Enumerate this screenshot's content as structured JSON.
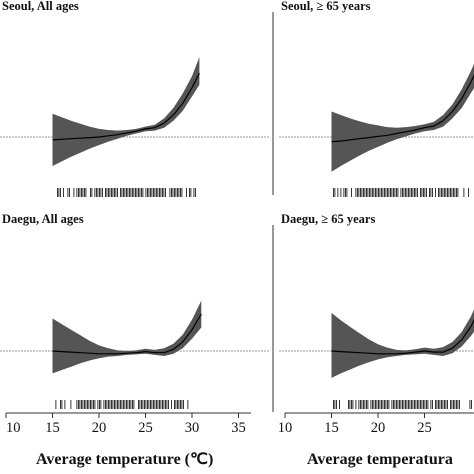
{
  "chart_data": [
    {
      "type": "line",
      "title": "Seoul, All ages",
      "xlim": [
        10,
        35
      ],
      "x": [
        15,
        16,
        17,
        18,
        19,
        20,
        21,
        22,
        23,
        24,
        25,
        26,
        27,
        28,
        29,
        30,
        30.8
      ],
      "series": [
        {
          "values": [
            0.95,
            0.96,
            0.97,
            0.98,
            0.99,
            1.0,
            1.02,
            1.04,
            1.07,
            1.1,
            1.14,
            1.16,
            1.24,
            1.38,
            1.58,
            1.85,
            2.1
          ]
        }
      ],
      "band": {
        "lower": [
          0.5,
          0.58,
          0.66,
          0.73,
          0.8,
          0.86,
          0.92,
          0.97,
          1.02,
          1.06,
          1.1,
          1.11,
          1.16,
          1.28,
          1.45,
          1.7,
          1.9
        ],
        "upper": [
          1.4,
          1.34,
          1.28,
          1.23,
          1.18,
          1.14,
          1.12,
          1.11,
          1.12,
          1.14,
          1.18,
          1.21,
          1.32,
          1.5,
          1.75,
          2.05,
          2.38
        ]
      },
      "reference": 1.0,
      "rug": "observed temperature distribution"
    },
    {
      "type": "line",
      "title": "Seoul, ≥ 65 years",
      "xlim": [
        10,
        35
      ],
      "x": [
        15,
        16,
        17,
        18,
        19,
        20,
        21,
        22,
        23,
        24,
        25,
        26,
        27,
        28,
        29,
        30,
        30.8
      ],
      "series": [
        {
          "values": [
            0.92,
            0.93,
            0.95,
            0.97,
            0.99,
            1.01,
            1.03,
            1.06,
            1.09,
            1.12,
            1.16,
            1.19,
            1.28,
            1.44,
            1.66,
            1.95,
            2.2
          ]
        }
      ],
      "band": {
        "lower": [
          0.4,
          0.5,
          0.59,
          0.68,
          0.76,
          0.83,
          0.9,
          0.96,
          1.01,
          1.06,
          1.1,
          1.12,
          1.18,
          1.32,
          1.5,
          1.76,
          1.96
        ],
        "upper": [
          1.44,
          1.38,
          1.32,
          1.27,
          1.23,
          1.2,
          1.17,
          1.16,
          1.17,
          1.19,
          1.22,
          1.26,
          1.38,
          1.56,
          1.82,
          2.14,
          2.44
        ]
      },
      "reference": 1.0,
      "rug": "observed temperature distribution"
    },
    {
      "type": "line",
      "title": "Daegu, All ages",
      "xlim": [
        10,
        35
      ],
      "x": [
        15,
        16,
        17,
        18,
        19,
        20,
        21,
        22,
        23,
        24,
        25,
        26,
        27,
        28,
        29,
        30,
        31
      ],
      "series": [
        {
          "values": [
            1.0,
            0.99,
            0.98,
            0.97,
            0.96,
            0.95,
            0.95,
            0.95,
            0.96,
            0.97,
            0.99,
            0.97,
            0.97,
            1.03,
            1.16,
            1.38,
            1.66
          ]
        }
      ],
      "band": {
        "lower": [
          0.6,
          0.66,
          0.72,
          0.78,
          0.83,
          0.87,
          0.9,
          0.91,
          0.93,
          0.94,
          0.95,
          0.93,
          0.91,
          0.95,
          1.05,
          1.22,
          1.42
        ],
        "upper": [
          1.58,
          1.48,
          1.38,
          1.28,
          1.18,
          1.1,
          1.05,
          1.01,
          1.0,
          1.01,
          1.04,
          1.02,
          1.05,
          1.13,
          1.29,
          1.56,
          1.9
        ]
      },
      "reference": 1.0,
      "rug": "observed temperature distribution"
    },
    {
      "type": "line",
      "title": "Daegu, ≥ 65 years",
      "xlim": [
        10,
        35
      ],
      "x": [
        15,
        16,
        17,
        18,
        19,
        20,
        21,
        22,
        23,
        24,
        25,
        26,
        27,
        28,
        29,
        30,
        31
      ],
      "series": [
        {
          "values": [
            1.0,
            0.99,
            0.98,
            0.97,
            0.96,
            0.95,
            0.95,
            0.95,
            0.96,
            0.98,
            1.0,
            0.98,
            0.98,
            1.05,
            1.2,
            1.44,
            1.76
          ]
        }
      ],
      "band": {
        "lower": [
          0.52,
          0.6,
          0.67,
          0.74,
          0.8,
          0.85,
          0.89,
          0.91,
          0.93,
          0.94,
          0.95,
          0.93,
          0.91,
          0.96,
          1.08,
          1.27,
          1.5
        ],
        "upper": [
          1.68,
          1.55,
          1.43,
          1.32,
          1.21,
          1.12,
          1.06,
          1.02,
          1.01,
          1.03,
          1.06,
          1.04,
          1.07,
          1.16,
          1.34,
          1.62,
          2.0
        ]
      },
      "reference": 1.0,
      "rug": "observed temperature distribution"
    }
  ],
  "x_axis": {
    "ticks_left": [
      "10",
      "15",
      "20",
      "25",
      "30",
      "35"
    ],
    "ticks_right": [
      "10",
      "15",
      "20",
      "25"
    ],
    "label_left": "Average temperature (℃)",
    "label_right": "Average temperatura"
  },
  "colors": {
    "band": "#555555",
    "line": "#000000",
    "reference": "#777777",
    "axis": "#333333"
  }
}
